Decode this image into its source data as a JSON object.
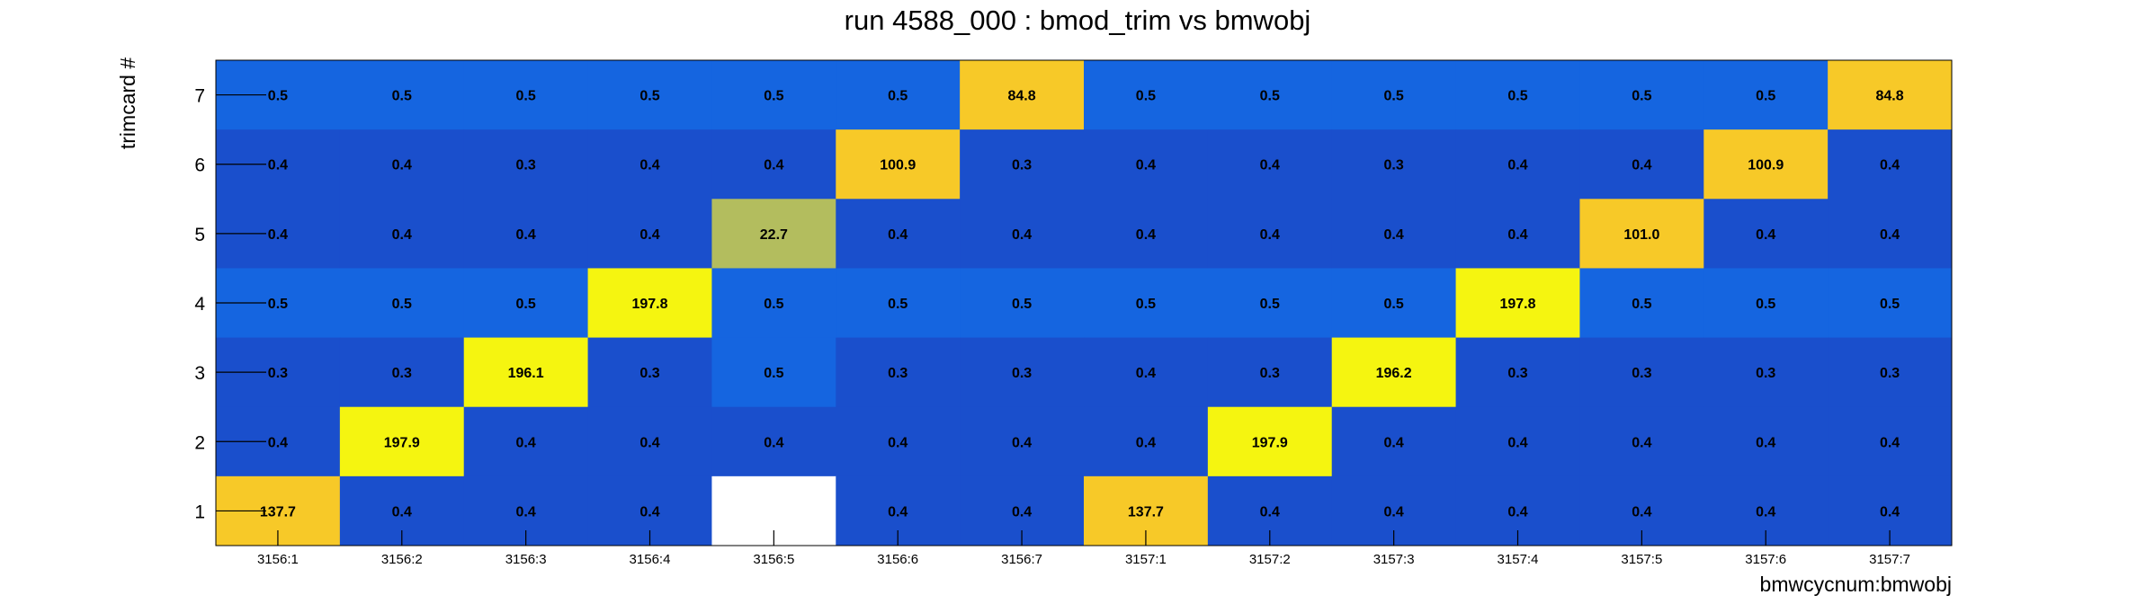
{
  "chart_data": {
    "type": "heatmap",
    "title": "run 4588_000 : bmod_trim vs bmwobj",
    "xlabel": "bmwcycnum:bmwobj",
    "ylabel": "trimcard #",
    "x_categories": [
      "3156:1",
      "3156:2",
      "3156:3",
      "3156:4",
      "3156:5",
      "3156:6",
      "3156:7",
      "3157:1",
      "3157:2",
      "3157:3",
      "3157:4",
      "3157:5",
      "3157:6",
      "3157:7"
    ],
    "y_categories": [
      "1",
      "2",
      "3",
      "4",
      "5",
      "6",
      "7"
    ],
    "rows": [
      {
        "y": "7",
        "values": [
          0.5,
          0.5,
          0.5,
          0.5,
          0.5,
          0.5,
          84.8,
          0.5,
          0.5,
          0.5,
          0.5,
          0.5,
          0.5,
          84.8
        ],
        "labels": [
          "0.5",
          "0.5",
          "0.5",
          "0.5",
          "0.5",
          "0.5",
          "84.8",
          "0.5",
          "0.5",
          "0.5",
          "0.5",
          "0.5",
          "0.5",
          "84.8"
        ]
      },
      {
        "y": "6",
        "values": [
          0.4,
          0.4,
          0.3,
          0.4,
          0.4,
          100.9,
          0.3,
          0.4,
          0.4,
          0.3,
          0.4,
          0.4,
          100.9,
          0.4
        ],
        "labels": [
          "0.4",
          "0.4",
          "0.3",
          "0.4",
          "0.4",
          "100.9",
          "0.3",
          "0.4",
          "0.4",
          "0.3",
          "0.4",
          "0.4",
          "100.9",
          "0.4"
        ]
      },
      {
        "y": "5",
        "values": [
          0.4,
          0.4,
          0.4,
          0.4,
          22.7,
          0.4,
          0.4,
          0.4,
          0.4,
          0.4,
          0.4,
          101.0,
          0.4,
          0.4
        ],
        "labels": [
          "0.4",
          "0.4",
          "0.4",
          "0.4",
          "22.7",
          "0.4",
          "0.4",
          "0.4",
          "0.4",
          "0.4",
          "0.4",
          "101.0",
          "0.4",
          "0.4"
        ]
      },
      {
        "y": "4",
        "values": [
          0.5,
          0.5,
          0.5,
          197.8,
          0.5,
          0.5,
          0.5,
          0.5,
          0.5,
          0.5,
          197.8,
          0.5,
          0.5,
          0.5
        ],
        "labels": [
          "0.5",
          "0.5",
          "0.5",
          "197.8",
          "0.5",
          "0.5",
          "0.5",
          "0.5",
          "0.5",
          "0.5",
          "197.8",
          "0.5",
          "0.5",
          "0.5"
        ]
      },
      {
        "y": "3",
        "values": [
          0.3,
          0.3,
          196.1,
          0.3,
          0.5,
          0.3,
          0.3,
          0.4,
          0.3,
          196.2,
          0.3,
          0.3,
          0.3,
          0.3
        ],
        "labels": [
          "0.3",
          "0.3",
          "196.1",
          "0.3",
          "0.5",
          "0.3",
          "0.3",
          "0.4",
          "0.3",
          "196.2",
          "0.3",
          "0.3",
          "0.3",
          "0.3"
        ]
      },
      {
        "y": "2",
        "values": [
          0.4,
          197.9,
          0.4,
          0.4,
          0.4,
          0.4,
          0.4,
          0.4,
          197.9,
          0.4,
          0.4,
          0.4,
          0.4,
          0.4
        ],
        "labels": [
          "0.4",
          "197.9",
          "0.4",
          "0.4",
          "0.4",
          "0.4",
          "0.4",
          "0.4",
          "197.9",
          "0.4",
          "0.4",
          "0.4",
          "0.4",
          "0.4"
        ]
      },
      {
        "y": "1",
        "values": [
          137.7,
          0.4,
          0.4,
          0.4,
          null,
          0.4,
          0.4,
          137.7,
          0.4,
          0.4,
          0.4,
          0.4,
          0.4,
          0.4
        ],
        "labels": [
          "137.7",
          "0.4",
          "0.4",
          "0.4",
          "",
          "0.4",
          "0.4",
          "137.7",
          "0.4",
          "0.4",
          "0.4",
          "0.4",
          "0.4",
          "0.4"
        ]
      }
    ],
    "cell_colors": {
      "low_dark": "#1a4fcc",
      "low_mid": "#1565e0",
      "mid": "#b3bd5e",
      "high": "#f7c928",
      "highest": "#f5f510",
      "empty": "#ffffff"
    },
    "grid": false,
    "legend": "none"
  }
}
